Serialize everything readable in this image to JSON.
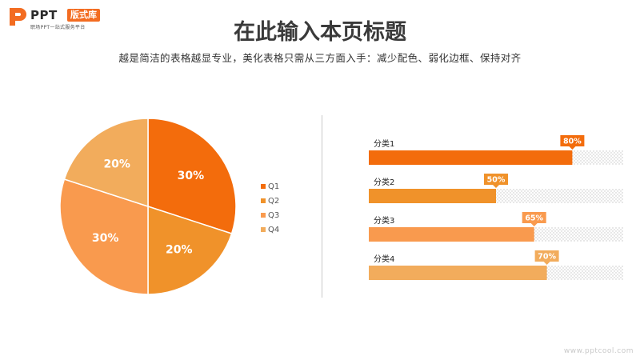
{
  "logo": {
    "brand": "PPT",
    "badge": "版式库",
    "tagline": "职场PPT一站式服务平台"
  },
  "title": "在此输入本页标题",
  "subtitle": "越是简洁的表格越显专业，美化表格只需从三方面入手：减少配色、弱化边框、保持对齐",
  "watermark": "www.pptcool.com",
  "colors": {
    "accent": "#f36c21",
    "q1": "#f36c0c",
    "q2": "#f0922a",
    "q3": "#f99a4e",
    "q4": "#f2ac5c"
  },
  "chart_data": [
    {
      "type": "pie",
      "categories": [
        "Q1",
        "Q2",
        "Q3",
        "Q4"
      ],
      "values": [
        30,
        20,
        30,
        20
      ],
      "labels": [
        "30%",
        "20%",
        "30%",
        "20%"
      ],
      "colors": [
        "#f36c0c",
        "#f0922a",
        "#f99a4e",
        "#f2ac5c"
      ],
      "legend": "right"
    },
    {
      "type": "bar",
      "orientation": "horizontal",
      "categories": [
        "分类1",
        "分类2",
        "分类3",
        "分类4"
      ],
      "values": [
        80,
        50,
        65,
        70
      ],
      "labels": [
        "80%",
        "50%",
        "65%",
        "70%"
      ],
      "xlim": [
        0,
        100
      ],
      "colors": [
        "#f36c0c",
        "#f0922a",
        "#f99a4e",
        "#f2ac5c"
      ]
    }
  ]
}
